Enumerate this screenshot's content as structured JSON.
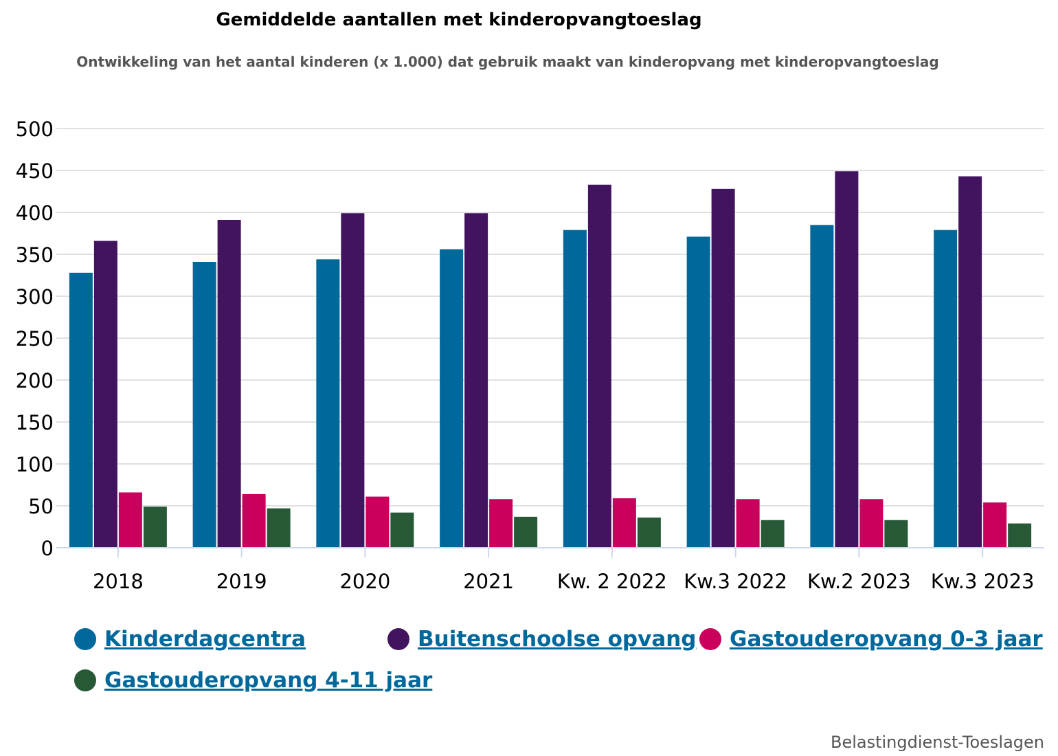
{
  "chart_data": {
    "type": "bar",
    "title": "Gemiddelde aantallen met kinderopvangtoeslag",
    "subtitle": "Ontwikkeling van het aantal kinderen (x 1.000) dat gebruik maakt van kinderopvang met kinderopvangtoeslag",
    "categories": [
      "2018",
      "2019",
      "2020",
      "2021",
      "Kw. 2 2022",
      "Kw.3 2022",
      "Kw.2 2023",
      "Kw.3 2023"
    ],
    "series": [
      {
        "name": "Kinderdagcentra",
        "color": "#01689b",
        "values": [
          328,
          341,
          344,
          356,
          379,
          371,
          385,
          379
        ]
      },
      {
        "name": "Buitenschoolse opvang",
        "color": "#42145f",
        "values": [
          366,
          391,
          399,
          399,
          433,
          428,
          449,
          443
        ]
      },
      {
        "name": "Gastouderopvang 0-3 jaar",
        "color": "#ca005d",
        "values": [
          66,
          64,
          61,
          58,
          59,
          58,
          58,
          54
        ]
      },
      {
        "name": "Gastouderopvang 4-11 jaar",
        "color": "#275937",
        "values": [
          49,
          47,
          42,
          37,
          36,
          33,
          33,
          29
        ]
      }
    ],
    "yticks": [
      "0",
      "50",
      "100",
      "150",
      "200",
      "250",
      "300",
      "350",
      "400",
      "450",
      "500"
    ],
    "ylim": [
      0,
      500
    ],
    "grid": true,
    "legend_position": "bottom"
  },
  "source": "Belastingdienst-Toeslagen"
}
